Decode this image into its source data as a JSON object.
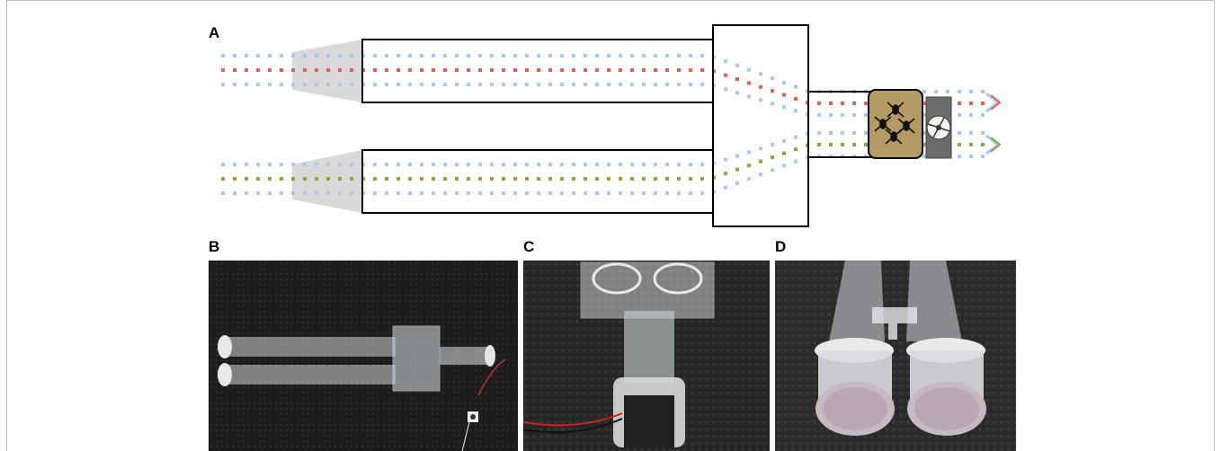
{
  "panels": {
    "a": {
      "label": "A"
    },
    "b": {
      "label": "B"
    },
    "c": {
      "label": "C"
    },
    "d": {
      "label": "D"
    }
  },
  "colors": {
    "air_dots": "#a9c8ee",
    "upper_odor_line": "#e0605a",
    "lower_odor_line": "#8aa446",
    "funnel": "#d8d8d8",
    "insect_chamber": "#b49a63",
    "outline": "#000000"
  },
  "icons": [
    "funnel",
    "tube",
    "mixing-chamber",
    "insect-chamber",
    "insects-icon",
    "fan-icon",
    "flow-arrow-icon"
  ]
}
